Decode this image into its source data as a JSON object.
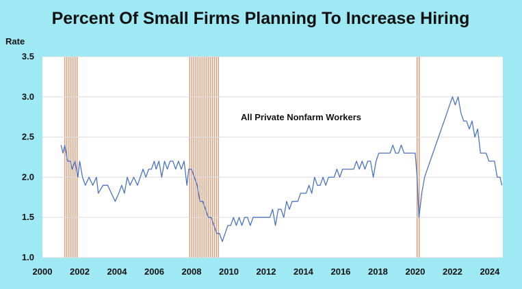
{
  "chart_data": {
    "type": "line",
    "title": "Percent Of Small Firms Planning To Increase Hiring",
    "ylabel": "Rate",
    "xlabel": "",
    "annotation": "All Private Nonfarm Workers",
    "xlim": [
      2000,
      2024.7
    ],
    "ylim": [
      1.0,
      3.5
    ],
    "x_ticks": [
      2000,
      2002,
      2004,
      2006,
      2008,
      2010,
      2012,
      2014,
      2016,
      2018,
      2020,
      2022,
      2024
    ],
    "y_ticks": [
      "1.0",
      "1.5",
      "2.0",
      "2.5",
      "3.0",
      "3.5"
    ],
    "grid": "horizontal",
    "colors": {
      "background": "#9ee9f4",
      "plot_area": "#ffffff",
      "line": "#4a72c4",
      "recession": "#d9a080",
      "grid": "#dddddd"
    },
    "recessions": [
      [
        2001.2,
        2001.9
      ],
      [
        2007.9,
        2009.5
      ],
      [
        2020.1,
        2020.3
      ]
    ],
    "series": [
      {
        "values": [
          [
            2001.0,
            2.4
          ],
          [
            2001.1,
            2.3
          ],
          [
            2001.2,
            2.4
          ],
          [
            2001.35,
            2.2
          ],
          [
            2001.5,
            2.2
          ],
          [
            2001.6,
            2.1
          ],
          [
            2001.75,
            2.2
          ],
          [
            2001.9,
            2.0
          ],
          [
            2002.0,
            2.2
          ],
          [
            2002.15,
            2.0
          ],
          [
            2002.3,
            1.9
          ],
          [
            2002.5,
            2.0
          ],
          [
            2002.7,
            1.9
          ],
          [
            2002.9,
            2.0
          ],
          [
            2003.0,
            1.8
          ],
          [
            2003.25,
            1.9
          ],
          [
            2003.5,
            1.9
          ],
          [
            2003.7,
            1.8
          ],
          [
            2003.9,
            1.7
          ],
          [
            2004.1,
            1.8
          ],
          [
            2004.25,
            1.9
          ],
          [
            2004.4,
            1.8
          ],
          [
            2004.55,
            2.0
          ],
          [
            2004.7,
            1.9
          ],
          [
            2004.9,
            2.0
          ],
          [
            2005.1,
            1.9
          ],
          [
            2005.25,
            2.0
          ],
          [
            2005.4,
            2.1
          ],
          [
            2005.55,
            2.0
          ],
          [
            2005.7,
            2.1
          ],
          [
            2005.85,
            2.1
          ],
          [
            2006.0,
            2.2
          ],
          [
            2006.1,
            2.1
          ],
          [
            2006.25,
            2.2
          ],
          [
            2006.4,
            2.0
          ],
          [
            2006.55,
            2.2
          ],
          [
            2006.7,
            2.1
          ],
          [
            2006.85,
            2.2
          ],
          [
            2007.0,
            2.2
          ],
          [
            2007.15,
            2.1
          ],
          [
            2007.3,
            2.2
          ],
          [
            2007.45,
            2.1
          ],
          [
            2007.6,
            2.2
          ],
          [
            2007.75,
            1.9
          ],
          [
            2007.85,
            2.1
          ],
          [
            2008.0,
            2.1
          ],
          [
            2008.15,
            2.0
          ],
          [
            2008.3,
            1.9
          ],
          [
            2008.45,
            1.7
          ],
          [
            2008.6,
            1.7
          ],
          [
            2008.75,
            1.6
          ],
          [
            2008.9,
            1.5
          ],
          [
            2009.05,
            1.5
          ],
          [
            2009.2,
            1.4
          ],
          [
            2009.35,
            1.3
          ],
          [
            2009.5,
            1.3
          ],
          [
            2009.65,
            1.2
          ],
          [
            2009.8,
            1.3
          ],
          [
            2009.95,
            1.4
          ],
          [
            2010.1,
            1.4
          ],
          [
            2010.25,
            1.5
          ],
          [
            2010.4,
            1.4
          ],
          [
            2010.55,
            1.5
          ],
          [
            2010.7,
            1.4
          ],
          [
            2010.85,
            1.5
          ],
          [
            2011.0,
            1.5
          ],
          [
            2011.15,
            1.4
          ],
          [
            2011.3,
            1.5
          ],
          [
            2011.45,
            1.5
          ],
          [
            2011.6,
            1.5
          ],
          [
            2011.75,
            1.5
          ],
          [
            2011.9,
            1.5
          ],
          [
            2012.05,
            1.5
          ],
          [
            2012.2,
            1.5
          ],
          [
            2012.35,
            1.6
          ],
          [
            2012.5,
            1.4
          ],
          [
            2012.65,
            1.6
          ],
          [
            2012.8,
            1.6
          ],
          [
            2012.95,
            1.5
          ],
          [
            2013.1,
            1.7
          ],
          [
            2013.25,
            1.6
          ],
          [
            2013.4,
            1.7
          ],
          [
            2013.55,
            1.7
          ],
          [
            2013.7,
            1.7
          ],
          [
            2013.85,
            1.8
          ],
          [
            2014.0,
            1.8
          ],
          [
            2014.15,
            1.8
          ],
          [
            2014.3,
            1.9
          ],
          [
            2014.45,
            1.8
          ],
          [
            2014.6,
            2.0
          ],
          [
            2014.75,
            1.9
          ],
          [
            2014.9,
            1.9
          ],
          [
            2015.05,
            2.0
          ],
          [
            2015.2,
            1.9
          ],
          [
            2015.35,
            2.0
          ],
          [
            2015.5,
            2.0
          ],
          [
            2015.65,
            2.0
          ],
          [
            2015.8,
            2.1
          ],
          [
            2015.95,
            2.0
          ],
          [
            2016.1,
            2.1
          ],
          [
            2016.25,
            2.1
          ],
          [
            2016.4,
            2.1
          ],
          [
            2016.55,
            2.1
          ],
          [
            2016.7,
            2.1
          ],
          [
            2016.85,
            2.2
          ],
          [
            2017.0,
            2.1
          ],
          [
            2017.15,
            2.2
          ],
          [
            2017.3,
            2.1
          ],
          [
            2017.45,
            2.2
          ],
          [
            2017.6,
            2.2
          ],
          [
            2017.75,
            2.0
          ],
          [
            2017.9,
            2.2
          ],
          [
            2018.05,
            2.3
          ],
          [
            2018.2,
            2.3
          ],
          [
            2018.35,
            2.3
          ],
          [
            2018.5,
            2.3
          ],
          [
            2018.65,
            2.3
          ],
          [
            2018.8,
            2.4
          ],
          [
            2018.95,
            2.3
          ],
          [
            2019.1,
            2.3
          ],
          [
            2019.25,
            2.4
          ],
          [
            2019.4,
            2.3
          ],
          [
            2019.55,
            2.3
          ],
          [
            2019.7,
            2.3
          ],
          [
            2019.85,
            2.3
          ],
          [
            2020.0,
            2.3
          ],
          [
            2020.1,
            2.0
          ],
          [
            2020.2,
            1.5
          ],
          [
            2020.35,
            1.8
          ],
          [
            2020.5,
            2.0
          ],
          [
            2020.65,
            2.1
          ],
          [
            2020.8,
            2.2
          ],
          [
            2020.95,
            2.3
          ],
          [
            2021.1,
            2.4
          ],
          [
            2021.25,
            2.5
          ],
          [
            2021.4,
            2.6
          ],
          [
            2021.55,
            2.7
          ],
          [
            2021.7,
            2.8
          ],
          [
            2021.85,
            2.9
          ],
          [
            2022.0,
            3.0
          ],
          [
            2022.15,
            2.9
          ],
          [
            2022.3,
            3.0
          ],
          [
            2022.45,
            2.8
          ],
          [
            2022.6,
            2.7
          ],
          [
            2022.75,
            2.7
          ],
          [
            2022.9,
            2.6
          ],
          [
            2023.05,
            2.7
          ],
          [
            2023.2,
            2.5
          ],
          [
            2023.35,
            2.6
          ],
          [
            2023.5,
            2.3
          ],
          [
            2023.65,
            2.3
          ],
          [
            2023.8,
            2.3
          ],
          [
            2023.95,
            2.2
          ],
          [
            2024.1,
            2.2
          ],
          [
            2024.25,
            2.2
          ],
          [
            2024.4,
            2.0
          ],
          [
            2024.55,
            2.0
          ],
          [
            2024.65,
            1.9
          ]
        ]
      }
    ]
  }
}
